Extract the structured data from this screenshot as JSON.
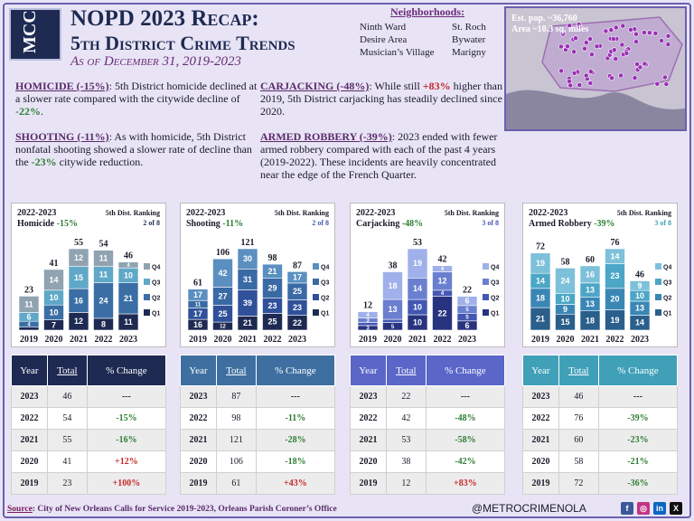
{
  "header": {
    "logo_text": "MCC",
    "title": "NOPD 2023 Recap:",
    "subtitle": "5th District Crime Trends",
    "as_of": "As of December 31, 2019-2023"
  },
  "neighborhoods": {
    "title": "Neighborhoods:",
    "col1": [
      "Ninth Ward",
      "Desire Area",
      "Musician’s Village"
    ],
    "col2": [
      "St. Roch",
      "Bywater",
      "Marigny"
    ]
  },
  "map": {
    "pop": "Est. pop. ~36,760",
    "area": "Area ~10.3 sq. miles"
  },
  "paragraphs": {
    "homicide": {
      "head": "HOMICIDE (-15%)",
      "body": ": 5th District homicide declined at a slower rate compared with the citywide decline of ",
      "val": "-22%",
      "end": "."
    },
    "shooting": {
      "head": "SHOOTING (-11%)",
      "body": ": As with homicide, 5th District nonfatal shooting showed a slower rate of decline than the ",
      "val": "-23%",
      "end": " citywide reduction."
    },
    "carjacking": {
      "head": "CARJACKING (-48%)",
      "body": ": While still ",
      "val": "+83%",
      "end": " higher than 2019, 5th District carjacking has steadily declined since 2020."
    },
    "robbery": {
      "head": "ARMED ROBBERY (-39%)",
      "body": ": 2023 ended with fewer armed robbery compared with each of the past 4 years (2019-2022). These incidents are heavily concentrated near the edge of the French Quarter."
    }
  },
  "chart_data": [
    {
      "type": "bar",
      "title": "2022-2023",
      "name": "Homicide",
      "change": "-15%",
      "ranking_label": "5th Dist. Ranking",
      "ranking": "2 of 8",
      "categories": [
        "2019",
        "2020",
        "2021",
        "2022",
        "2023"
      ],
      "totals": [
        23,
        41,
        55,
        54,
        46
      ],
      "series": [
        {
          "name": "Q1",
          "values": [
            2,
            7,
            12,
            8,
            11
          ]
        },
        {
          "name": "Q2",
          "values": [
            4,
            10,
            16,
            24,
            21
          ]
        },
        {
          "name": "Q3",
          "values": [
            6,
            10,
            15,
            11,
            10
          ]
        },
        {
          "name": "Q4",
          "values": [
            11,
            14,
            12,
            11,
            4
          ]
        }
      ],
      "ylim": [
        0,
        55
      ]
    },
    {
      "type": "bar",
      "title": "2022-2023",
      "name": "Shooting",
      "change": "-11%",
      "ranking_label": "5th Dist. Ranking",
      "ranking": "2 of 8",
      "categories": [
        "2019",
        "2020",
        "2021",
        "2022",
        "2023"
      ],
      "totals": [
        61,
        106,
        121,
        98,
        87
      ],
      "series": [
        {
          "name": "Q1",
          "values": [
            16,
            12,
            21,
            25,
            22
          ]
        },
        {
          "name": "Q2",
          "values": [
            17,
            25,
            39,
            23,
            23
          ]
        },
        {
          "name": "Q3",
          "values": [
            11,
            27,
            31,
            29,
            25
          ]
        },
        {
          "name": "Q4",
          "values": [
            17,
            42,
            30,
            21,
            17
          ]
        }
      ],
      "ylim": [
        0,
        121
      ]
    },
    {
      "type": "bar",
      "title": "2022-2023",
      "name": "Carjacking",
      "change": "-48%",
      "ranking_label": "5th Dist. Ranking",
      "ranking": "3 of 8",
      "categories": [
        "2019",
        "2020",
        "2021",
        "2022",
        "2023"
      ],
      "totals": [
        12,
        38,
        53,
        42,
        22
      ],
      "series": [
        {
          "name": "Q1",
          "values": [
            3,
            5,
            10,
            22,
            6
          ]
        },
        {
          "name": "Q2",
          "values": [
            2,
            2,
            10,
            4,
            5
          ]
        },
        {
          "name": "Q3",
          "values": [
            3,
            13,
            14,
            12,
            5
          ]
        },
        {
          "name": "Q4",
          "values": [
            4,
            18,
            19,
            4,
            6
          ]
        }
      ],
      "ylim": [
        0,
        53
      ]
    },
    {
      "type": "bar",
      "title": "2022-2023",
      "name": "Armed Robbery",
      "change": "-39%",
      "ranking_label": "5th Dist. Ranking",
      "ranking": "3 of 8",
      "categories": [
        "2019",
        "2020",
        "2021",
        "2022",
        "2023"
      ],
      "totals": [
        72,
        58,
        60,
        76,
        46
      ],
      "series": [
        {
          "name": "Q1",
          "values": [
            21,
            15,
            18,
            19,
            14
          ]
        },
        {
          "name": "Q2",
          "values": [
            18,
            9,
            13,
            20,
            13
          ]
        },
        {
          "name": "Q3",
          "values": [
            14,
            10,
            13,
            23,
            10
          ]
        },
        {
          "name": "Q4",
          "values": [
            19,
            24,
            16,
            14,
            9
          ]
        }
      ],
      "ylim": [
        0,
        76
      ]
    }
  ],
  "tables": [
    {
      "color": "#1e2a52",
      "headers": [
        "Year",
        "Total",
        "% Change"
      ],
      "rows": [
        [
          "2023",
          "46",
          "---"
        ],
        [
          "2022",
          "54",
          "-15%"
        ],
        [
          "2021",
          "55",
          "-16%"
        ],
        [
          "2020",
          "41",
          "+12%"
        ],
        [
          "2019",
          "23",
          "+100%"
        ]
      ]
    },
    {
      "color": "#3e6fa0",
      "headers": [
        "Year",
        "Total",
        "% Change"
      ],
      "rows": [
        [
          "2023",
          "87",
          "---"
        ],
        [
          "2022",
          "98",
          "-11%"
        ],
        [
          "2021",
          "121",
          "-28%"
        ],
        [
          "2020",
          "106",
          "-18%"
        ],
        [
          "2019",
          "61",
          "+43%"
        ]
      ]
    },
    {
      "color": "#5a66c8",
      "headers": [
        "Year",
        "Total",
        "% Change"
      ],
      "rows": [
        [
          "2023",
          "22",
          "---"
        ],
        [
          "2022",
          "42",
          "-48%"
        ],
        [
          "2021",
          "53",
          "-58%"
        ],
        [
          "2020",
          "38",
          "-42%"
        ],
        [
          "2019",
          "12",
          "+83%"
        ]
      ]
    },
    {
      "color": "#3fa0b8",
      "headers": [
        "Year",
        "Total",
        "% Change"
      ],
      "rows": [
        [
          "2023",
          "46",
          "---"
        ],
        [
          "2022",
          "76",
          "-39%"
        ],
        [
          "2021",
          "60",
          "-23%"
        ],
        [
          "2020",
          "58",
          "-21%"
        ],
        [
          "2019",
          "72",
          "-36%"
        ]
      ]
    }
  ],
  "footer": {
    "source_label": "Source",
    "source": ": City of New Orleans Calls for Service 2019-2023, Orleans Parish Coroner’s Office",
    "handle": "@METROCRIMENOLA"
  },
  "palettes": [
    [
      "#1e2a52",
      "#3a6ea5",
      "#5fa8c8",
      "#8fa3b0"
    ],
    [
      "#1e2a52",
      "#30509a",
      "#3a6aa5",
      "#5a8fc0"
    ],
    [
      "#27337e",
      "#4357b3",
      "#6b7fd0",
      "#9fb0ea"
    ],
    [
      "#2a5f8c",
      "#3a87b5",
      "#4ca6c6",
      "#7dc0d9"
    ]
  ],
  "rank_colors": [
    "#1e2a52",
    "#4357b3",
    "#4357b3",
    "#3fa0b8"
  ]
}
